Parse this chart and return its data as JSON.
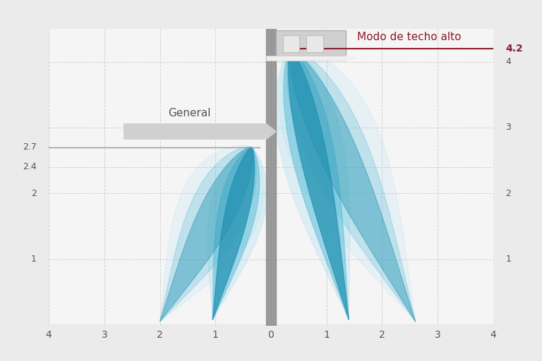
{
  "bg_color": "#ebebeb",
  "plot_bg_color": "#f5f5f5",
  "grid_color": "#cccccc",
  "xlim": [
    -4,
    4
  ],
  "ylim": [
    0,
    4.5
  ],
  "xticks": [
    -4,
    -3,
    -2,
    -1,
    0,
    1,
    2,
    3,
    4
  ],
  "yticks_left": [
    1,
    2,
    2.4,
    2.7
  ],
  "yticks_right": [
    1,
    2,
    3,
    4
  ],
  "ceiling_y": 4.2,
  "ceiling_label": "4.2",
  "ceiling_line_color": "#8b1c2c",
  "general_label": "General",
  "mode_label": "Modo de techo alto",
  "mode_label_color": "#8b1c2c",
  "pole_color": "#8a8a8a",
  "ac_unit_color": "#c5c5c5",
  "air_outer_color": "#aaddf0",
  "air_mid_color": "#55bcd8",
  "air_inner_color": "#2090b0",
  "general_ceiling_y": 2.7,
  "high_ceiling_y": 4.2
}
